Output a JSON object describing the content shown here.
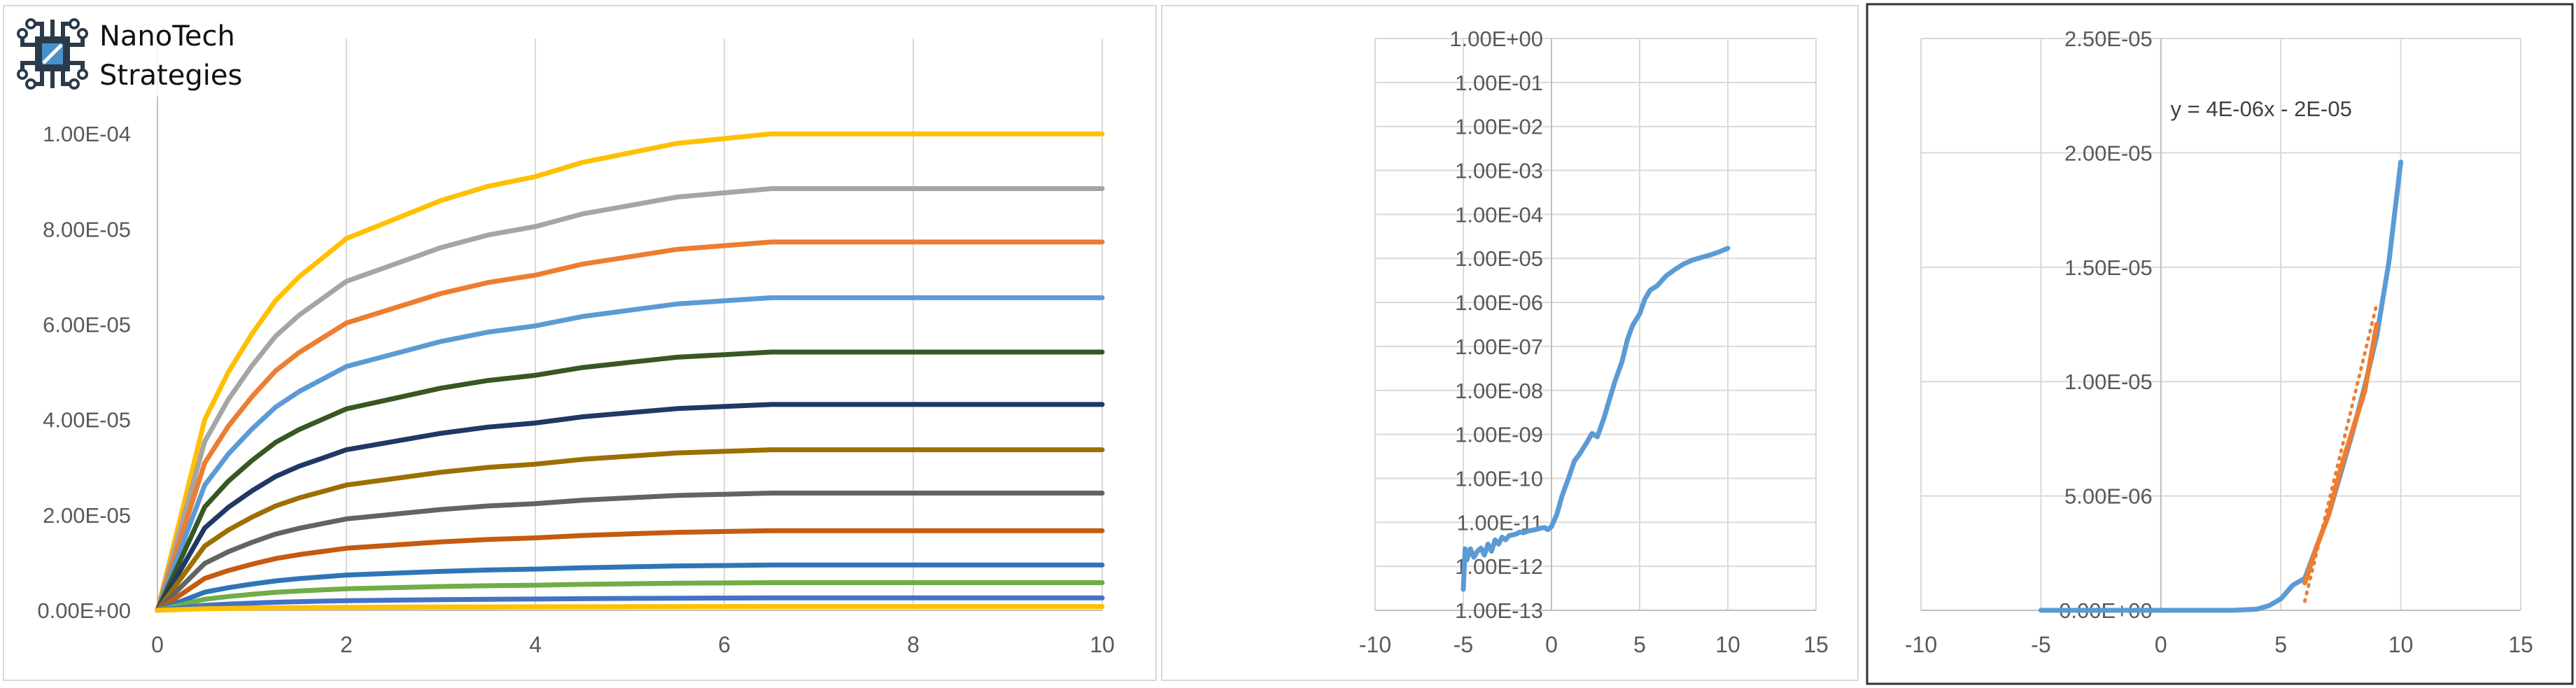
{
  "logo": {
    "line1": "NanoTech",
    "line2": "Strategies",
    "icon": "circuit-chip-icon",
    "color": "#2b3a4a"
  },
  "chart_data": [
    {
      "type": "line",
      "title": "",
      "xlabel": "",
      "ylabel": "",
      "xlim": [
        0,
        10
      ],
      "ylim": [
        0,
        0.00012
      ],
      "grid": "vertical",
      "legend": "none",
      "x_ticks": [
        0,
        2,
        4,
        6,
        8,
        10
      ],
      "x_tick_labels": [
        "0",
        "2",
        "4",
        "6",
        "8",
        "10"
      ],
      "y_ticks": [
        0,
        2e-05,
        4e-05,
        6e-05,
        8e-05,
        0.0001
      ],
      "y_tick_labels": [
        "0.00E+00",
        "2.00E-05",
        "4.00E-05",
        "6.00E-05",
        "8.00E-05",
        "1.00E-04"
      ],
      "x": [
        0,
        0.25,
        0.5,
        0.75,
        1,
        1.25,
        1.5,
        1.75,
        2,
        2.5,
        3,
        3.5,
        4,
        4.5,
        5,
        5.5,
        6,
        6.5,
        7,
        7.5,
        8,
        8.5,
        9,
        9.5,
        10
      ],
      "series": [
        {
          "color": "#ffc000",
          "values": [
            0,
            0.2,
            0.4,
            0.5,
            0.58,
            0.65,
            0.7,
            0.74,
            0.78,
            0.82,
            0.86,
            0.89,
            0.91,
            0.94,
            0.96,
            0.98,
            0.99,
            1,
            1,
            1,
            1,
            1,
            1,
            1,
            1
          ],
          "scale": 0.0001
        },
        {
          "color": "#a5a5a5",
          "values": [
            0,
            0.2,
            0.4,
            0.5,
            0.58,
            0.65,
            0.7,
            0.74,
            0.78,
            0.82,
            0.86,
            0.89,
            0.91,
            0.94,
            0.96,
            0.98,
            0.99,
            1,
            1,
            1,
            1,
            1,
            1,
            1,
            1
          ],
          "scale": 8.85e-05
        },
        {
          "color": "#ed7d31",
          "values": [
            0,
            0.2,
            0.4,
            0.5,
            0.58,
            0.65,
            0.7,
            0.74,
            0.78,
            0.82,
            0.86,
            0.89,
            0.91,
            0.94,
            0.96,
            0.98,
            0.99,
            1,
            1,
            1,
            1,
            1,
            1,
            1,
            1
          ],
          "scale": 7.73e-05
        },
        {
          "color": "#5b9bd5",
          "values": [
            0,
            0.2,
            0.4,
            0.5,
            0.58,
            0.65,
            0.7,
            0.74,
            0.78,
            0.82,
            0.86,
            0.89,
            0.91,
            0.94,
            0.96,
            0.98,
            0.99,
            1,
            1,
            1,
            1,
            1,
            1,
            1,
            1
          ],
          "scale": 6.56e-05
        },
        {
          "color": "#385723",
          "values": [
            0,
            0.2,
            0.4,
            0.5,
            0.58,
            0.65,
            0.7,
            0.74,
            0.78,
            0.82,
            0.86,
            0.89,
            0.91,
            0.94,
            0.96,
            0.98,
            0.99,
            1,
            1,
            1,
            1,
            1,
            1,
            1,
            1
          ],
          "scale": 5.42e-05
        },
        {
          "color": "#203864",
          "values": [
            0,
            0.2,
            0.4,
            0.5,
            0.58,
            0.65,
            0.7,
            0.74,
            0.78,
            0.82,
            0.86,
            0.89,
            0.91,
            0.94,
            0.96,
            0.98,
            0.99,
            1,
            1,
            1,
            1,
            1,
            1,
            1,
            1
          ],
          "scale": 4.32e-05
        },
        {
          "color": "#9c6f00",
          "values": [
            0,
            0.2,
            0.4,
            0.5,
            0.58,
            0.65,
            0.7,
            0.74,
            0.78,
            0.82,
            0.86,
            0.89,
            0.91,
            0.94,
            0.96,
            0.98,
            0.99,
            1,
            1,
            1,
            1,
            1,
            1,
            1,
            1
          ],
          "scale": 3.37e-05
        },
        {
          "color": "#636363",
          "values": [
            0,
            0.2,
            0.4,
            0.5,
            0.58,
            0.65,
            0.7,
            0.74,
            0.78,
            0.82,
            0.86,
            0.89,
            0.91,
            0.94,
            0.96,
            0.98,
            0.99,
            1,
            1,
            1,
            1,
            1,
            1,
            1,
            1
          ],
          "scale": 2.46e-05
        },
        {
          "color": "#c55a11",
          "values": [
            0,
            0.2,
            0.4,
            0.5,
            0.58,
            0.65,
            0.7,
            0.74,
            0.78,
            0.82,
            0.86,
            0.89,
            0.91,
            0.94,
            0.96,
            0.98,
            0.99,
            1,
            1,
            1,
            1,
            1,
            1,
            1,
            1
          ],
          "scale": 1.67e-05
        },
        {
          "color": "#2e75b6",
          "values": [
            0,
            0.2,
            0.4,
            0.5,
            0.58,
            0.65,
            0.7,
            0.74,
            0.78,
            0.82,
            0.86,
            0.89,
            0.91,
            0.94,
            0.96,
            0.98,
            0.99,
            1,
            1,
            1,
            1,
            1,
            1,
            1,
            1
          ],
          "scale": 9.5e-06
        },
        {
          "color": "#70ad47",
          "values": [
            0,
            0.2,
            0.4,
            0.5,
            0.58,
            0.65,
            0.7,
            0.74,
            0.78,
            0.82,
            0.86,
            0.89,
            0.91,
            0.94,
            0.96,
            0.98,
            0.99,
            1,
            1,
            1,
            1,
            1,
            1,
            1,
            1
          ],
          "scale": 5.8e-06
        },
        {
          "color": "#4472c4",
          "values": [
            0,
            0.2,
            0.4,
            0.5,
            0.58,
            0.65,
            0.7,
            0.74,
            0.78,
            0.82,
            0.86,
            0.89,
            0.91,
            0.94,
            0.96,
            0.98,
            0.99,
            1,
            1,
            1,
            1,
            1,
            1,
            1,
            1
          ],
          "scale": 2.6e-06
        },
        {
          "color": "#ffc000",
          "values": [
            0,
            0.2,
            0.4,
            0.5,
            0.58,
            0.65,
            0.7,
            0.74,
            0.78,
            0.82,
            0.86,
            0.89,
            0.91,
            0.94,
            0.96,
            0.98,
            0.99,
            1,
            1,
            1,
            1,
            1,
            1,
            1,
            1
          ],
          "scale": 8e-07
        }
      ]
    },
    {
      "type": "line",
      "title": "",
      "xlabel": "",
      "ylabel": "",
      "y_scale": "log",
      "xlim": [
        -10,
        15
      ],
      "ylim": [
        1e-13,
        1
      ],
      "grid": "both",
      "legend": "none",
      "x_ticks": [
        -10,
        -5,
        0,
        5,
        10,
        15
      ],
      "x_tick_labels": [
        "-10",
        "-5",
        "0",
        "5",
        "10",
        "15"
      ],
      "y_tick_labels": [
        "1.00E+00",
        "1.00E-01",
        "1.00E-02",
        "1.00E-03",
        "1.00E-04",
        "1.00E-05",
        "1.00E-06",
        "1.00E-07",
        "1.00E-08",
        "1.00E-09",
        "1.00E-10",
        "1.00E-11",
        "1.00E-12",
        "1.00E-13"
      ],
      "series": [
        {
          "color": "#5b9bd5",
          "x": [
            -5,
            -4.9,
            -4.8,
            -4.6,
            -4.4,
            -4.2,
            -4,
            -3.8,
            -3.6,
            -3.4,
            -3.2,
            -3,
            -2.8,
            -2.6,
            -2.4,
            -2.2,
            -2,
            -1.8,
            -1.6,
            -1.4,
            -1.2,
            -1,
            -0.8,
            -0.6,
            -0.4,
            -0.2,
            0,
            0.3,
            0.6,
            1,
            1.3,
            1.6,
            2,
            2.3,
            2.6,
            3,
            3.3,
            3.6,
            4,
            4.3,
            4.6,
            5,
            5.3,
            5.6,
            6,
            6.5,
            7,
            7.5,
            8,
            8.5,
            9,
            9.5,
            10
          ],
          "values": [
            3e-13,
            2.5e-12,
            1.4e-12,
            2.5e-12,
            1.6e-12,
            2.2e-12,
            2.6e-12,
            1.8e-12,
            3.2e-12,
            2.2e-12,
            4e-12,
            3.2e-12,
            4.6e-12,
            4e-12,
            5e-12,
            5.2e-12,
            5.4e-12,
            6e-12,
            5.8e-12,
            6.2e-12,
            6.5e-12,
            6.7e-12,
            7e-12,
            7.4e-12,
            7.6e-12,
            6.8e-12,
            8e-12,
            1.5e-11,
            4e-11,
            1.1e-10,
            2.5e-10,
            3.6e-10,
            6.5e-10,
            1.05e-09,
            8.8e-10,
            2.5e-09,
            6.5e-09,
            1.6e-08,
            4.5e-08,
            1.4e-07,
            3e-07,
            5.5e-07,
            1.2e-06,
            1.9e-06,
            2.4e-06,
            4e-06,
            5.6e-06,
            7.5e-06,
            9.2e-06,
            1.05e-05,
            1.2e-05,
            1.4e-05,
            1.7e-05
          ]
        }
      ]
    },
    {
      "type": "line",
      "title": "",
      "xlabel": "",
      "ylabel": "",
      "xlim": [
        -10,
        15
      ],
      "ylim": [
        0,
        2.5e-05
      ],
      "grid": "both",
      "legend": "none",
      "x_ticks": [
        -10,
        -5,
        0,
        5,
        10,
        15
      ],
      "x_tick_labels": [
        "-10",
        "-5",
        "0",
        "5",
        "10",
        "15"
      ],
      "y_ticks": [
        0,
        5e-06,
        1e-05,
        1.5e-05,
        2e-05,
        2.5e-05
      ],
      "y_tick_labels": [
        "0.00E+00",
        "5.00E-06",
        "1.00E-05",
        "1.50E-05",
        "2.00E-05",
        "2.50E-05"
      ],
      "annotation": "y = 4E-06x - 2E-05",
      "series": [
        {
          "color": "#5b9bd5",
          "x": [
            -5,
            -3,
            -1,
            0,
            1,
            2,
            3,
            4,
            4.5,
            5,
            5.5,
            6,
            6.5,
            7,
            7.5,
            8,
            8.5,
            9,
            9.5,
            10
          ],
          "values": [
            0,
            0,
            0,
            0,
            0,
            0,
            0,
            5e-08,
            2e-07,
            5e-07,
            1.1e-06,
            1.4e-06,
            2.8e-06,
            4.2e-06,
            6e-06,
            7.8e-06,
            9.8e-06,
            1.2e-05,
            1.52e-05,
            1.96e-05
          ]
        },
        {
          "color": "#ed7d31",
          "style": "solid",
          "x": [
            6,
            6.5,
            7,
            7.5,
            8,
            8.5,
            9
          ],
          "values": [
            1.2e-06,
            2.8e-06,
            4.2e-06,
            6.2e-06,
            7.9e-06,
            9.6e-06,
            1.25e-05
          ]
        },
        {
          "color": "#ed7d31",
          "style": "dotted",
          "trendline": true,
          "x": [
            6,
            9
          ],
          "values": [
            4e-07,
            1.34e-05
          ]
        }
      ]
    }
  ]
}
